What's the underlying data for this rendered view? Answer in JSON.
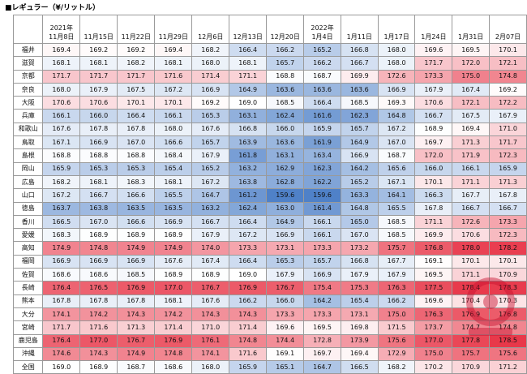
{
  "title": "■レギュラー（¥/リットル）",
  "columns": [
    {
      "year": "2021年",
      "date": "11月8日"
    },
    {
      "year": "",
      "date": "11月15日"
    },
    {
      "year": "",
      "date": "11月22日"
    },
    {
      "year": "",
      "date": "11月29日"
    },
    {
      "year": "",
      "date": "12月6日"
    },
    {
      "year": "",
      "date": "12月13日"
    },
    {
      "year": "",
      "date": "12月20日"
    },
    {
      "year": "2022年",
      "date": "1月4日"
    },
    {
      "year": "",
      "date": "1月11日"
    },
    {
      "year": "",
      "date": "1月17日"
    },
    {
      "year": "",
      "date": "1月24日"
    },
    {
      "year": "",
      "date": "1月31日"
    },
    {
      "year": "",
      "date": "2月07日"
    }
  ],
  "rows": [
    {
      "pref": "福井",
      "values": [
        "169.4",
        "169.2",
        "169.2",
        "169.4",
        "168.2",
        "166.4",
        "166.2",
        "165.2",
        "166.8",
        "168.0",
        "169.6",
        "169.5",
        "170.1"
      ]
    },
    {
      "pref": "滋賀",
      "values": [
        "168.1",
        "168.1",
        "168.2",
        "168.1",
        "168.0",
        "168.1",
        "165.7",
        "166.2",
        "166.7",
        "168.0",
        "171.7",
        "172.0",
        "172.1"
      ]
    },
    {
      "pref": "京都",
      "values": [
        "171.7",
        "171.7",
        "171.7",
        "171.6",
        "171.4",
        "171.1",
        "168.8",
        "168.7",
        "169.9",
        "172.6",
        "173.3",
        "175.0",
        "174.8"
      ]
    },
    {
      "pref": "奈良",
      "values": [
        "168.0",
        "167.9",
        "167.5",
        "167.2",
        "166.9",
        "164.9",
        "163.6",
        "163.6",
        "163.6",
        "166.9",
        "167.9",
        "167.4",
        "169.2"
      ]
    },
    {
      "pref": "大阪",
      "values": [
        "170.6",
        "170.6",
        "170.1",
        "170.1",
        "169.2",
        "169.0",
        "168.5",
        "166.4",
        "168.5",
        "169.3",
        "170.6",
        "172.1",
        "172.2"
      ]
    },
    {
      "pref": "兵庫",
      "values": [
        "166.1",
        "166.0",
        "166.4",
        "166.1",
        "165.3",
        "163.1",
        "162.4",
        "161.6",
        "162.3",
        "164.8",
        "166.7",
        "167.5",
        "167.9"
      ]
    },
    {
      "pref": "和歌山",
      "values": [
        "167.6",
        "167.8",
        "167.8",
        "168.0",
        "167.6",
        "166.8",
        "166.0",
        "165.9",
        "165.7",
        "167.2",
        "168.9",
        "169.4",
        "171.0"
      ]
    },
    {
      "pref": "鳥取",
      "values": [
        "167.1",
        "166.9",
        "167.0",
        "166.6",
        "165.7",
        "163.9",
        "163.6",
        "161.9",
        "164.9",
        "167.0",
        "169.7",
        "171.3",
        "171.7"
      ]
    },
    {
      "pref": "島根",
      "values": [
        "168.8",
        "168.8",
        "168.8",
        "168.4",
        "167.9",
        "161.8",
        "163.1",
        "163.4",
        "166.9",
        "168.7",
        "172.0",
        "171.9",
        "172.3"
      ]
    },
    {
      "pref": "岡山",
      "values": [
        "165.9",
        "165.3",
        "165.3",
        "165.4",
        "165.2",
        "163.2",
        "162.9",
        "162.3",
        "164.2",
        "165.6",
        "166.0",
        "166.1",
        "165.9"
      ]
    },
    {
      "pref": "広島",
      "values": [
        "168.2",
        "168.1",
        "168.3",
        "168.1",
        "167.2",
        "163.8",
        "162.8",
        "162.2",
        "165.2",
        "167.1",
        "170.1",
        "171.1",
        "171.3"
      ]
    },
    {
      "pref": "山口",
      "values": [
        "167.2",
        "166.7",
        "166.6",
        "165.5",
        "164.7",
        "161.2",
        "159.6",
        "159.6",
        "163.3",
        "164.1",
        "166.3",
        "167.7",
        "167.8"
      ]
    },
    {
      "pref": "徳島",
      "values": [
        "163.7",
        "163.8",
        "163.5",
        "163.5",
        "163.2",
        "162.4",
        "163.0",
        "161.4",
        "164.8",
        "165.5",
        "167.8",
        "166.7",
        "166.7"
      ]
    },
    {
      "pref": "香川",
      "values": [
        "166.5",
        "167.0",
        "166.6",
        "166.9",
        "166.7",
        "166.4",
        "164.9",
        "166.1",
        "165.0",
        "168.5",
        "171.1",
        "172.6",
        "173.3"
      ]
    },
    {
      "pref": "愛媛",
      "values": [
        "168.3",
        "168.9",
        "168.9",
        "168.9",
        "167.9",
        "167.2",
        "166.9",
        "166.1",
        "167.0",
        "168.5",
        "169.9",
        "170.6",
        "172.3"
      ]
    },
    {
      "pref": "高知",
      "values": [
        "174.9",
        "174.8",
        "174.9",
        "174.9",
        "174.0",
        "173.3",
        "173.1",
        "173.3",
        "173.2",
        "175.7",
        "176.8",
        "178.0",
        "178.2"
      ]
    },
    {
      "pref": "福岡",
      "values": [
        "166.9",
        "166.9",
        "166.9",
        "167.6",
        "167.4",
        "166.4",
        "165.3",
        "165.7",
        "166.8",
        "167.7",
        "169.1",
        "170.1",
        "170.1"
      ]
    },
    {
      "pref": "佐賀",
      "values": [
        "168.6",
        "168.6",
        "168.5",
        "168.9",
        "168.9",
        "169.0",
        "167.9",
        "166.9",
        "167.9",
        "167.9",
        "169.5",
        "171.1",
        "170.9"
      ]
    },
    {
      "pref": "長崎",
      "values": [
        "176.4",
        "176.5",
        "176.9",
        "177.0",
        "176.7",
        "176.9",
        "176.7",
        "175.4",
        "175.3",
        "176.3",
        "177.5",
        "178.4",
        "178.3"
      ]
    },
    {
      "pref": "熊本",
      "values": [
        "167.8",
        "167.8",
        "167.8",
        "168.1",
        "167.6",
        "166.2",
        "166.0",
        "164.2",
        "165.4",
        "166.2",
        "169.6",
        "170.4",
        "170.3"
      ]
    },
    {
      "pref": "大分",
      "values": [
        "174.1",
        "174.2",
        "174.3",
        "174.2",
        "174.3",
        "174.3",
        "173.3",
        "173.3",
        "173.1",
        "175.0",
        "176.3",
        "176.9",
        "176.8"
      ]
    },
    {
      "pref": "宮崎",
      "values": [
        "171.7",
        "171.6",
        "171.3",
        "171.4",
        "171.0",
        "171.4",
        "169.6",
        "169.5",
        "169.8",
        "171.5",
        "173.7",
        "174.7",
        "174.8"
      ]
    },
    {
      "pref": "鹿児島",
      "values": [
        "176.4",
        "177.0",
        "176.7",
        "176.9",
        "176.1",
        "174.8",
        "174.4",
        "172.8",
        "173.9",
        "175.6",
        "177.0",
        "177.8",
        "178.5"
      ]
    },
    {
      "pref": "沖縄",
      "values": [
        "174.6",
        "174.3",
        "174.9",
        "174.8",
        "174.1",
        "171.6",
        "169.1",
        "169.7",
        "169.4",
        "172.9",
        "175.0",
        "175.7",
        "175.6"
      ]
    },
    {
      "pref": "全国",
      "values": [
        "169.0",
        "168.9",
        "168.7",
        "168.6",
        "168.0",
        "165.9",
        "165.1",
        "164.7",
        "166.5",
        "168.2",
        "170.2",
        "170.9",
        "171.2"
      ]
    }
  ],
  "colors": {
    "low": "#4f81c8",
    "mid": "#ffffff",
    "high": "#e8384a"
  },
  "scale": {
    "min": 159.6,
    "mid": 169.0,
    "max": 178.5
  },
  "logo_icon": "watermark-logo"
}
